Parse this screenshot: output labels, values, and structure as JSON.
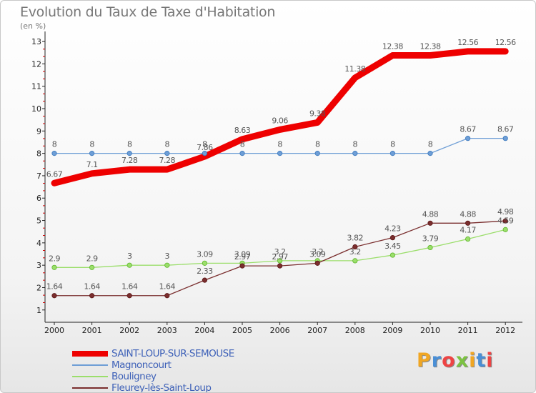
{
  "title": "Evolution du Taux de Taxe d'Habitation",
  "subtitle": "(en %)",
  "chart_data": {
    "type": "line",
    "title": "Evolution du Taux de Taxe d'Habitation",
    "ylabel": "(en %)",
    "x": [
      "2000",
      "2001",
      "2002",
      "2003",
      "2004",
      "2005",
      "2006",
      "2007",
      "2008",
      "2009",
      "2010",
      "2011",
      "2012"
    ],
    "ylim": [
      1,
      13
    ],
    "yticks": [
      "1",
      "2",
      "3",
      "4",
      "5",
      "6",
      "7",
      "8",
      "9",
      "10",
      "11",
      "12",
      "13"
    ],
    "grid": false,
    "legend": "bottom-left",
    "series": [
      {
        "name": "SAINT-LOUP-SUR-SEMOUSE",
        "color": "#ee0000",
        "values": [
          6.67,
          7.1,
          7.28,
          7.28,
          7.86,
          8.63,
          9.06,
          9.38,
          11.38,
          12.38,
          12.38,
          12.56,
          12.56
        ],
        "labels": [
          "6.67",
          "7.1",
          "7.28",
          "7.28",
          "7.86",
          "8.63",
          "9.06",
          "9.38",
          "11.38",
          "12.38",
          "12.38",
          "12.56",
          "12.56"
        ]
      },
      {
        "name": "Magnoncourt",
        "color": "#6e9ed6",
        "values": [
          8,
          8,
          8,
          8,
          8,
          8,
          8,
          8,
          8,
          8,
          8,
          8.67,
          8.67
        ],
        "labels": [
          "8",
          "8",
          "8",
          "8",
          "8",
          "8",
          "8",
          "8",
          "8",
          "8",
          "8",
          "8.67",
          "8.67"
        ]
      },
      {
        "name": "Bouligney",
        "color": "#9bde6b",
        "values": [
          2.9,
          2.9,
          3,
          3,
          3.09,
          3.09,
          3.2,
          3.2,
          3.2,
          3.45,
          3.79,
          4.17,
          4.59
        ],
        "labels": [
          "2.9",
          "2.9",
          "3",
          "3",
          "3.09",
          "3.09",
          "3.2",
          "3.2",
          "3.2",
          "3.45",
          "3.79",
          "4.17",
          "4.59"
        ]
      },
      {
        "name": "Fleurey-lès-Saint-Loup",
        "color": "#7a2e2e",
        "values": [
          1.64,
          1.64,
          1.64,
          1.64,
          2.33,
          2.97,
          2.97,
          3.09,
          3.82,
          4.23,
          4.88,
          4.88,
          4.98
        ],
        "labels": [
          "1.64",
          "1.64",
          "1.64",
          "1.64",
          "2.33",
          "2.97",
          "2.97",
          "3.09",
          "3.82",
          "4.23",
          "4.88",
          "4.88",
          "4.98"
        ]
      }
    ]
  },
  "logo": {
    "text": "Proxiti",
    "colors": [
      "#f0a623",
      "#4a8fd6",
      "#ee4444",
      "#7cc242",
      "#f0a623",
      "#4a8fd6",
      "#ee4444"
    ]
  }
}
